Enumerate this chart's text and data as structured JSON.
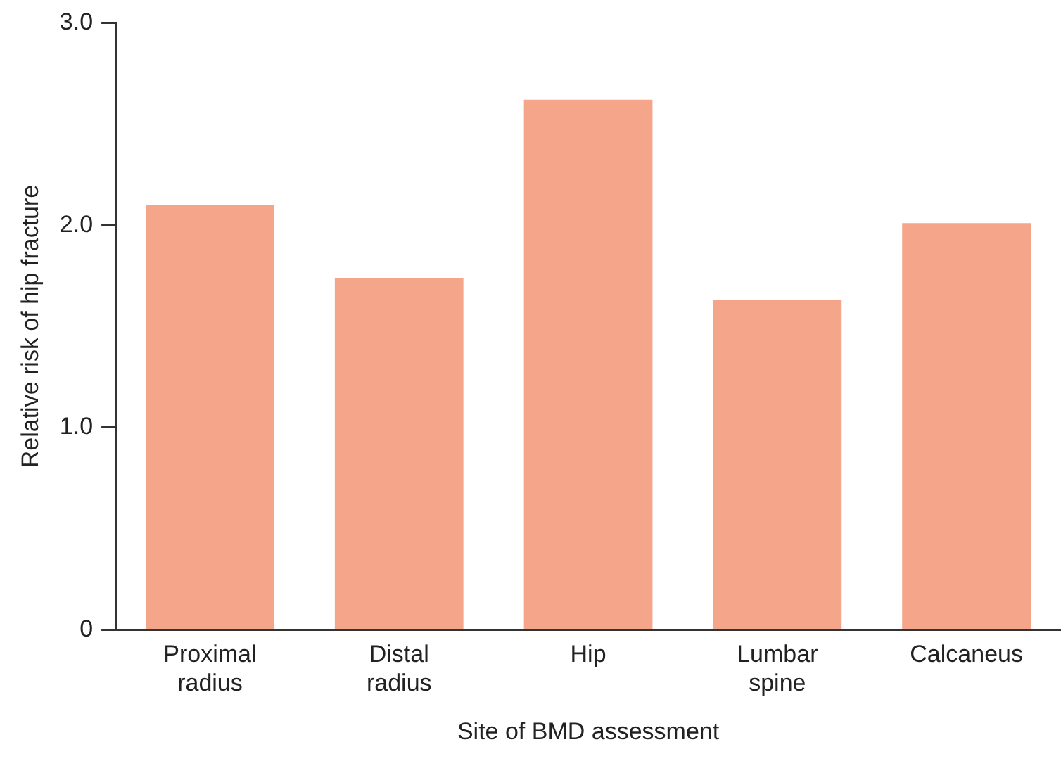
{
  "chart_data": {
    "type": "bar",
    "xlabel": "Site of BMD assessment",
    "ylabel": "Relative risk of hip fracture",
    "categories": [
      "Proximal radius",
      "Distal radius",
      "Hip",
      "Lumbar spine",
      "Calcaneus"
    ],
    "values": [
      2.1,
      1.74,
      2.62,
      1.63,
      2.01
    ],
    "color": "#f5a58a",
    "ylim": [
      0,
      3
    ],
    "yticks": [
      {
        "value": 0,
        "label": "0"
      },
      {
        "value": 1,
        "label": "1.0"
      },
      {
        "value": 2,
        "label": "2.0"
      },
      {
        "value": 3,
        "label": "3.0"
      }
    ],
    "grid": false,
    "legend": false
  }
}
